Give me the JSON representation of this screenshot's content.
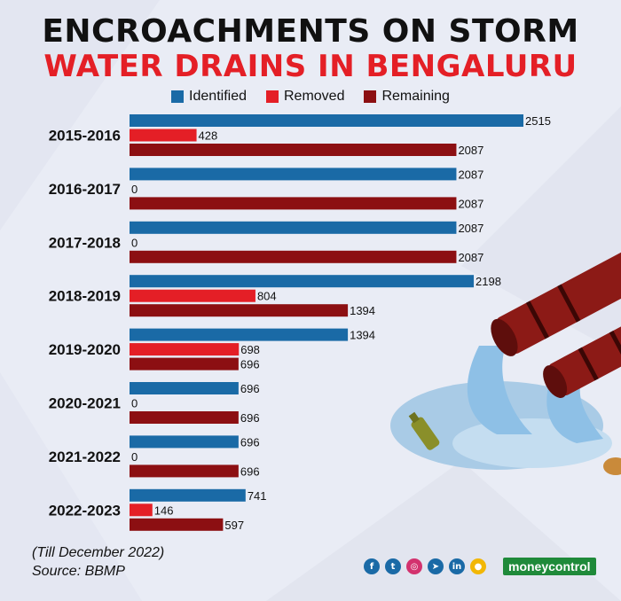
{
  "title_line1": "ENCROACHMENTS ON STORM",
  "title_line2": "WATER DRAINS IN BENGALURU",
  "footnote": "(Till December 2022)",
  "source": "Source: BBMP",
  "brand": "moneycontrol",
  "social_icons": [
    "facebook-icon",
    "twitter-icon",
    "instagram-icon",
    "telegram-icon",
    "linkedin-icon",
    "koo-icon"
  ],
  "colors": {
    "identified": "#1a6aa6",
    "removed": "#e41f26",
    "remaining": "#8c0f12",
    "title_accent": "#e41f26"
  },
  "chart_data": {
    "type": "bar",
    "orientation": "horizontal",
    "categories": [
      "2015-2016",
      "2016-2017",
      "2017-2018",
      "2018-2019",
      "2019-2020",
      "2020-2021",
      "2021-2022",
      "2022-2023"
    ],
    "series": [
      {
        "name": "Identified",
        "values": [
          2515,
          2087,
          2087,
          2198,
          1394,
          696,
          696,
          741
        ]
      },
      {
        "name": "Removed",
        "values": [
          428,
          0,
          0,
          804,
          698,
          0,
          0,
          146
        ]
      },
      {
        "name": "Remaining",
        "values": [
          2087,
          2087,
          2087,
          1394,
          696,
          696,
          696,
          597
        ]
      }
    ],
    "legend_position": "top-center",
    "grid": false
  }
}
